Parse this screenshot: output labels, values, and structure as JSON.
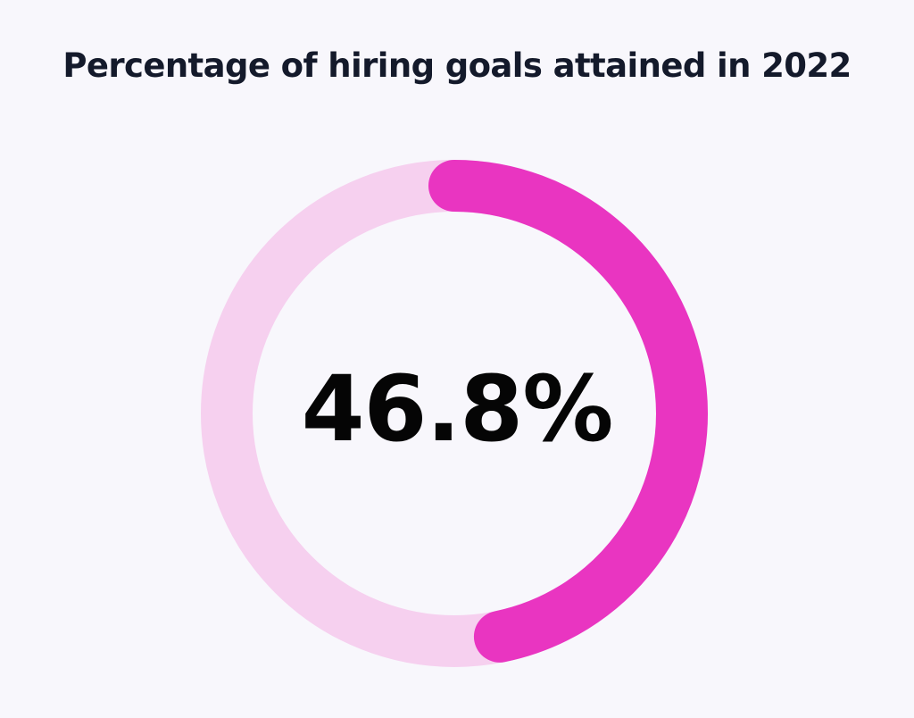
{
  "chart_data": {
    "type": "radial-progress",
    "title": "Percentage of hiring goals attained in 2022",
    "value": 46.8,
    "max": 100,
    "label": "46.8%",
    "colors": {
      "progress": "#e935c1",
      "track": "#f6d0ef",
      "background": "#f8f7fc",
      "title": "#141a2b",
      "label": "#050505"
    }
  }
}
